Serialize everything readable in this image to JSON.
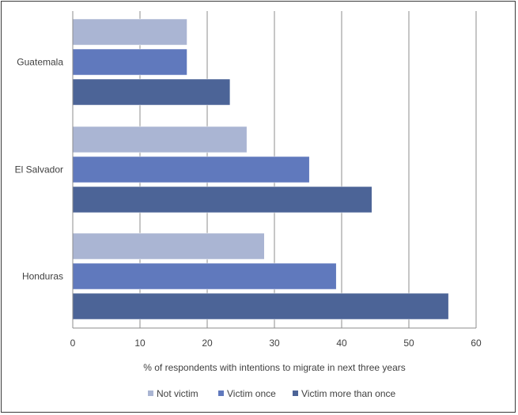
{
  "chart_data": {
    "type": "bar",
    "orientation": "horizontal",
    "categories": [
      "Guatemala",
      "El Salvador",
      "Honduras"
    ],
    "series": [
      {
        "name": "Not victim",
        "values": [
          17.0,
          25.9,
          28.5
        ],
        "color": "#aab5d3"
      },
      {
        "name": "Victim once",
        "values": [
          17.0,
          35.2,
          39.2
        ],
        "color": "#6079bd"
      },
      {
        "name": "Victim more than once",
        "values": [
          23.4,
          44.5,
          55.9
        ],
        "color": "#4c6497"
      }
    ],
    "xlabel": "% of respondents with intentions to migrate in next three years",
    "ylabel": "",
    "xlim": [
      0,
      60
    ],
    "x_ticks": [
      "0",
      "10",
      "20",
      "30",
      "40",
      "50",
      "60"
    ],
    "grid": "vertical",
    "legend_position": "bottom"
  }
}
